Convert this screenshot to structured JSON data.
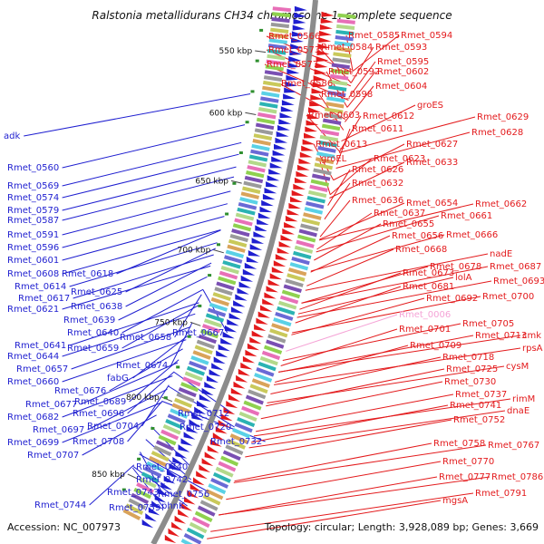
{
  "map": {
    "title": "Ralstonia metallidurans CH34 chromosome 1, complete sequence",
    "accession": "Accession: NC_007973",
    "summary": "Topology: circular; Length: 3,928,089 bp; Genes: 3,669",
    "colors": {
      "forward": "#e31a1c",
      "reverse": "#1f1fd0",
      "backbone": "#8c8c8c",
      "highlight": "#f5a3d6"
    }
  },
  "chart_data": {
    "type": "circular-genome-map",
    "kbp_ticks": [
      "550 kbp",
      "600 kbp",
      "650 kbp",
      "700 kbp",
      "750 kbp",
      "800 kbp",
      "850 kbp"
    ],
    "left_labels": [
      "adk",
      "Rmet_0560",
      "Rmet_0569",
      "Rmet_0574",
      "Rmet_0579",
      "Rmet_0587",
      "Rmet_0591",
      "Rmet_0596",
      "Rmet_0601",
      "Rmet_0608",
      "Rmet_0618",
      "Rmet_0614",
      "Rmet_0625",
      "Rmet_0617",
      "Rmet_0638",
      "Rmet_0621",
      "Rmet_0639",
      "Rmet_0640",
      "Rmet_0667",
      "Rmet_0658",
      "Rmet_0641",
      "Rmet_0659",
      "Rmet_0644",
      "Rmet_0674",
      "Rmet_0657",
      "fabG",
      "Rmet_0660",
      "Rmet_0676",
      "Rmet_0689",
      "Rmet_0677",
      "Rmet_0696",
      "Rmet_0712",
      "Rmet_0682",
      "Rmet_0704",
      "Rmet_0720",
      "Rmet_0697",
      "Rmet_0708",
      "Rmet_0732",
      "Rmet_0699",
      "Rmet_0707",
      "Rmet_0740",
      "Rmet_0742",
      "Rmet_0743",
      "Rmet_0756",
      "Rmet_0744",
      "Rmet_0759",
      "phnK"
    ],
    "right_labels": [
      "Rmet_0566",
      "Rmet_0585",
      "Rmet_0594",
      "Rmet_0573",
      "Rmet_0584",
      "Rmet_0593",
      "Rmet_0595",
      "Rmet_0577",
      "Rmet_0592",
      "Rmet_0602",
      "Rmet_0586",
      "Rmet_0604",
      "Rmet_0598",
      "groES",
      "Rmet_0603",
      "Rmet_0612",
      "Rmet_0629",
      "Rmet_0611",
      "Rmet_0628",
      "Rmet_0613",
      "Rmet_0627",
      "groEL",
      "Rmet_0623",
      "Rmet_0633",
      "Rmet_0626",
      "Rmet_0632",
      "Rmet_0636",
      "Rmet_0654",
      "Rmet_0662",
      "Rmet_0637",
      "Rmet_0661",
      "Rmet_0655",
      "Rmet_0656",
      "Rmet_0666",
      "Rmet_0668",
      "nadE",
      "Rmet_0678",
      "Rmet_0687",
      "Rmet_0673",
      "lolA",
      "Rmet_0693",
      "Rmet_0681",
      "Rmet_0692",
      "Rmet_0700",
      "Rmet_0006",
      "Rmet_0705",
      "Rmet_0701",
      "Rmet_0713",
      "cmk",
      "Rmet_0709",
      "rpsA",
      "Rmet_0718",
      "Rmet_0725",
      "cysM",
      "Rmet_0730",
      "Rmet_0737",
      "rimM",
      "Rmet_0741",
      "dnaE",
      "Rmet_0752",
      "Rmet_0758",
      "Rmet_0767",
      "Rmet_0770",
      "Rmet_0777",
      "Rmet_0786",
      "Rmet_0791",
      "mgsA"
    ]
  }
}
